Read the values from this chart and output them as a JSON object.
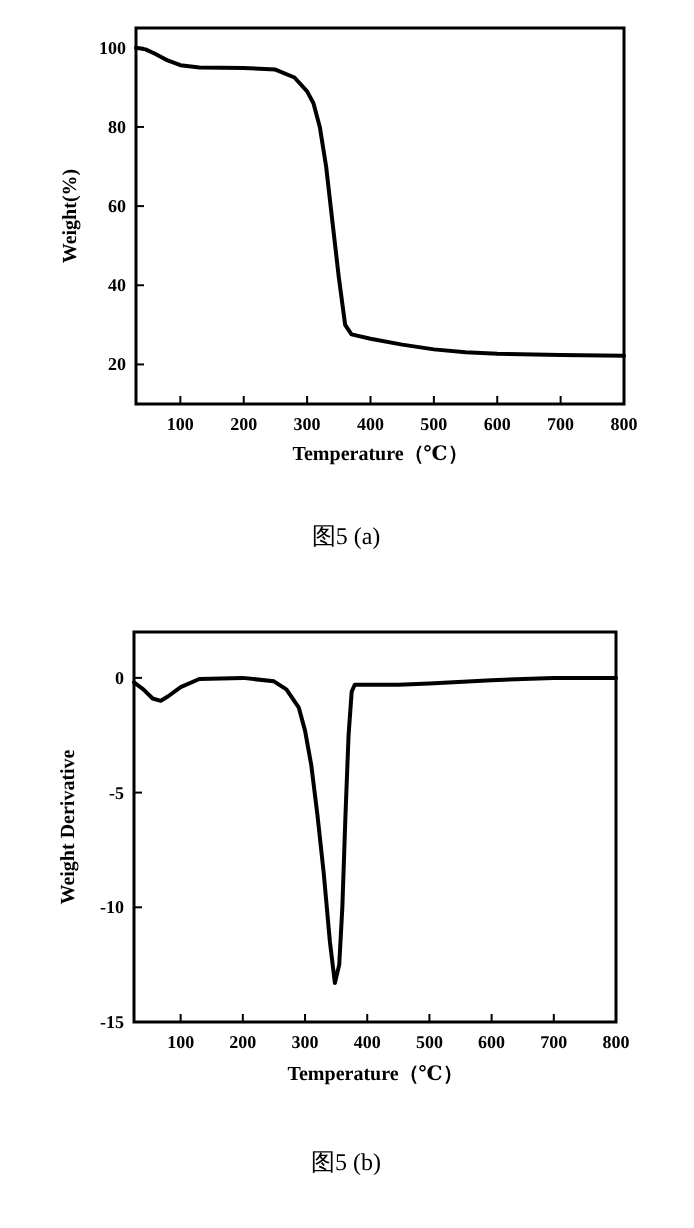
{
  "chart_data": [
    {
      "type": "line",
      "xlabel": "Temperature（℃）",
      "ylabel": "Weight(%)",
      "annotations": [
        "图5 (a)"
      ],
      "color": "#000000",
      "x": [
        30,
        45,
        60,
        80,
        100,
        130,
        200,
        250,
        280,
        300,
        310,
        320,
        330,
        340,
        350,
        360,
        370,
        400,
        450,
        500,
        550,
        600,
        700,
        800
      ],
      "values": [
        100,
        99.6,
        98.5,
        96.8,
        95.6,
        95.0,
        94.9,
        94.5,
        92.5,
        89,
        86,
        80,
        70,
        56,
        42,
        30,
        27.6,
        26.5,
        25,
        23.8,
        23.1,
        22.7,
        22.4,
        22.2
      ],
      "xlim": [
        30,
        800
      ],
      "ylim": [
        10,
        105
      ],
      "xticks": [
        100,
        200,
        300,
        400,
        500,
        600,
        700,
        800
      ],
      "yticks": [
        20,
        40,
        60,
        80,
        100
      ]
    },
    {
      "type": "line",
      "xlabel": "Temperature（℃）",
      "ylabel": "Weight Derivative",
      "annotations": [
        "图5 (b)"
      ],
      "color": "#000000",
      "x": [
        25,
        40,
        55,
        68,
        80,
        100,
        130,
        200,
        250,
        270,
        290,
        300,
        310,
        320,
        330,
        340,
        348,
        355,
        360,
        365,
        370,
        375,
        380,
        450,
        500,
        600,
        700,
        800
      ],
      "values": [
        -0.2,
        -0.5,
        -0.9,
        -1.0,
        -0.8,
        -0.4,
        -0.05,
        0,
        -0.15,
        -0.5,
        -1.3,
        -2.3,
        -3.8,
        -6,
        -8.5,
        -11.5,
        -13.3,
        -12.5,
        -10,
        -6,
        -2.5,
        -0.6,
        -0.3,
        -0.3,
        -0.25,
        -0.1,
        0,
        0
      ],
      "xlim": [
        25,
        800
      ],
      "ylim": [
        -15,
        2
      ],
      "xticks": [
        100,
        200,
        300,
        400,
        500,
        600,
        700,
        800
      ],
      "yticks": [
        0,
        -5,
        -10,
        -15
      ]
    }
  ]
}
